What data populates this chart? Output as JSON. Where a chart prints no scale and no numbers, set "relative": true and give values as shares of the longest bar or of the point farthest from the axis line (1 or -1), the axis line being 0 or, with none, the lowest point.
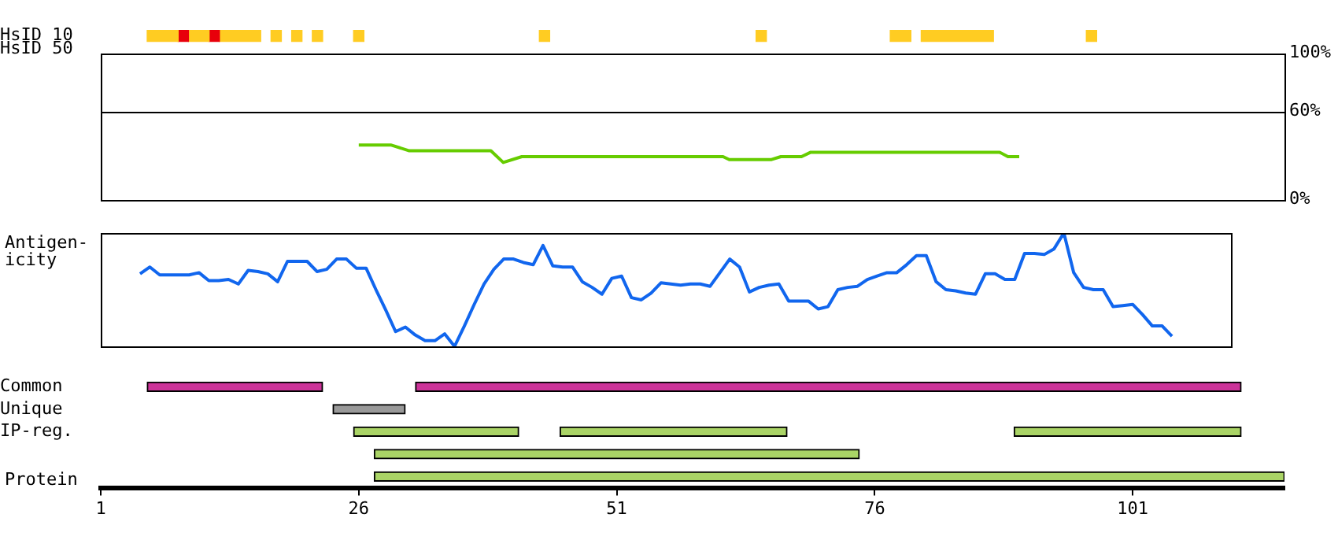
{
  "chart_data": [
    {
      "type": "bar",
      "orientation": "horizontal",
      "categories": [
        "HsID 10",
        "HsID 50"
      ],
      "xlim": [
        1,
        115.7
      ],
      "tick_labels": "y",
      "series": [
        {
          "color": "#ffcc22",
          "values": [
            3,
            null
          ],
          "base": [
            5.5,
            null
          ]
        },
        {
          "color": "#e8000b",
          "values": [
            1,
            null
          ],
          "base": [
            8.5,
            null
          ]
        },
        {
          "color": "#ffcc22",
          "values": [
            2,
            null
          ],
          "base": [
            9.5,
            null
          ]
        },
        {
          "color": "#e8000b",
          "values": [
            1,
            null
          ],
          "base": [
            11.5,
            null
          ]
        },
        {
          "color": "#ffcc22",
          "values": [
            4,
            null
          ],
          "base": [
            12.5,
            null
          ]
        },
        {
          "color": "#ffcc22",
          "values": [
            1,
            null
          ],
          "base": [
            17.5,
            null
          ]
        },
        {
          "color": "#ffcc22",
          "values": [
            1,
            null
          ],
          "base": [
            19.5,
            null
          ]
        },
        {
          "color": "#ffcc22",
          "values": [
            1,
            null
          ],
          "base": [
            21.5,
            null
          ]
        },
        {
          "color": "#ffcc22",
          "values": [
            1,
            null
          ],
          "base": [
            25.5,
            null
          ]
        },
        {
          "color": "#ffcc22",
          "values": [
            1,
            null
          ],
          "base": [
            43.5,
            null
          ]
        },
        {
          "color": "#ffcc22",
          "values": [
            1,
            null
          ],
          "base": [
            64.5,
            null
          ]
        },
        {
          "color": "#ffcc22",
          "values": [
            2,
            null
          ],
          "base": [
            77.5,
            null
          ]
        },
        {
          "color": "#ffcc22",
          "values": [
            7,
            null
          ],
          "base": [
            80.5,
            null
          ]
        },
        {
          "color": "#ffcc22",
          "values": [
            1,
            null
          ],
          "base": [
            96.5,
            null
          ]
        }
      ]
    },
    {
      "type": "line",
      "xlim": [
        1,
        115.7
      ],
      "ylim": [
        0,
        100
      ],
      "yticks": [
        {
          "value": 0,
          "label": "0%"
        },
        {
          "value": 60,
          "label": "60%"
        },
        {
          "value": 100,
          "label": "100%"
        }
      ],
      "tick_labels": "y",
      "color": "#66cc00",
      "x": [
        26,
        29.1,
        30.9,
        38.8,
        40,
        41.8,
        61.3,
        61.9,
        66,
        66.9,
        68.9,
        69.8,
        88.1,
        88.9,
        90
      ],
      "values": [
        37,
        37,
        33,
        33,
        25,
        29,
        29,
        27,
        27,
        29,
        29,
        32,
        32,
        29,
        29
      ],
      "ref_lines": [
        {
          "axis": "y",
          "value": 60,
          "color": "#000000"
        }
      ]
    },
    {
      "type": "line",
      "ylabel": "Antigen-icity",
      "relative": true,
      "tick_labels": false,
      "color": "#1166ee",
      "categories": [
        null,
        null,
        null,
        null,
        null,
        null,
        null,
        null,
        null,
        null,
        null,
        null,
        null,
        null,
        null,
        null,
        null,
        null,
        null,
        null,
        null,
        null,
        null,
        null,
        null,
        null,
        null,
        null,
        null,
        null,
        null,
        null,
        null,
        null,
        null,
        null,
        null,
        null,
        null,
        null,
        null,
        null,
        null,
        null,
        null,
        null,
        null,
        null,
        null,
        null,
        null,
        null,
        null,
        null,
        null,
        null,
        null,
        null,
        null,
        null,
        null,
        null,
        null,
        null,
        null,
        null,
        null,
        null,
        null,
        null,
        null,
        null,
        null,
        null,
        null,
        null,
        null,
        null,
        null,
        null,
        null,
        null,
        null,
        null,
        null,
        null,
        null,
        null,
        null,
        null,
        null,
        null,
        null,
        null,
        null,
        null,
        null,
        null,
        null,
        null,
        null,
        null,
        null,
        null,
        null,
        null,
        null,
        null,
        null,
        null,
        null,
        null,
        null,
        null,
        null,
        null
      ],
      "values": [
        null,
        null,
        null,
        null,
        0.64,
        0.7,
        0.63,
        0.63,
        0.63,
        0.63,
        0.65,
        0.58,
        0.58,
        0.59,
        0.55,
        0.67,
        0.66,
        0.64,
        0.57,
        0.75,
        0.75,
        0.75,
        0.66,
        0.68,
        0.77,
        0.77,
        0.69,
        0.69,
        0.5,
        0.32,
        0.13,
        0.17,
        0.1,
        0.05,
        0.05,
        0.11,
        0,
        0.18,
        0.37,
        0.55,
        0.68,
        0.77,
        0.77,
        0.74,
        0.72,
        0.89,
        0.71,
        0.7,
        0.7,
        0.57,
        0.52,
        0.46,
        0.6,
        0.62,
        0.43,
        0.41,
        0.47,
        0.56,
        0.55,
        0.54,
        0.55,
        0.55,
        0.53,
        0.65,
        0.77,
        0.7,
        0.48,
        0.52,
        0.54,
        0.55,
        0.4,
        0.4,
        0.4,
        0.33,
        0.35,
        0.5,
        0.52,
        0.53,
        0.59,
        0.62,
        0.65,
        0.65,
        0.72,
        0.8,
        0.8,
        0.57,
        0.5,
        0.49,
        0.47,
        0.46,
        0.64,
        0.64,
        0.59,
        0.59,
        0.82,
        0.82,
        0.81,
        0.86,
        1,
        0.65,
        0.52,
        0.5,
        0.5,
        0.35,
        0.36,
        0.37,
        0.28,
        0.18,
        0.18,
        0.09,
        null,
        null,
        null,
        null,
        null,
        null
      ]
    },
    {
      "type": "bar",
      "orientation": "horizontal",
      "xlabel": "Protein",
      "categories": [
        "Common",
        "Unique",
        "IP-reg.",
        null,
        null
      ],
      "xlim": [
        1,
        115.7
      ],
      "xticks": [
        1,
        26,
        51,
        76,
        101
      ],
      "series": [
        {
          "color": "#cc3399",
          "values": [
            17,
            null,
            null,
            null,
            null
          ],
          "base": [
            5.5,
            null,
            null,
            null,
            null
          ]
        },
        {
          "color": "#cc3399",
          "values": [
            80,
            null,
            null,
            null,
            null
          ],
          "base": [
            31.5,
            null,
            null,
            null,
            null
          ]
        },
        {
          "color": "#999999",
          "values": [
            null,
            7,
            null,
            null,
            null
          ],
          "base": [
            null,
            23.5,
            null,
            null,
            null
          ]
        },
        {
          "color": "#aad466",
          "values": [
            null,
            null,
            16,
            null,
            null
          ],
          "base": [
            null,
            null,
            25.5,
            null,
            null
          ]
        },
        {
          "color": "#aad466",
          "values": [
            null,
            null,
            22,
            null,
            null
          ],
          "base": [
            null,
            null,
            45.5,
            null,
            null
          ]
        },
        {
          "color": "#aad466",
          "values": [
            null,
            null,
            22,
            null,
            null
          ],
          "base": [
            null,
            null,
            89.5,
            null,
            null
          ]
        },
        {
          "color": "#aad466",
          "values": [
            null,
            null,
            null,
            47,
            null
          ],
          "base": [
            null,
            null,
            null,
            27.5,
            null
          ]
        },
        {
          "color": "#aad466",
          "values": [
            null,
            null,
            null,
            null,
            88.2
          ],
          "base": [
            null,
            null,
            null,
            null,
            27.5
          ]
        }
      ]
    }
  ]
}
